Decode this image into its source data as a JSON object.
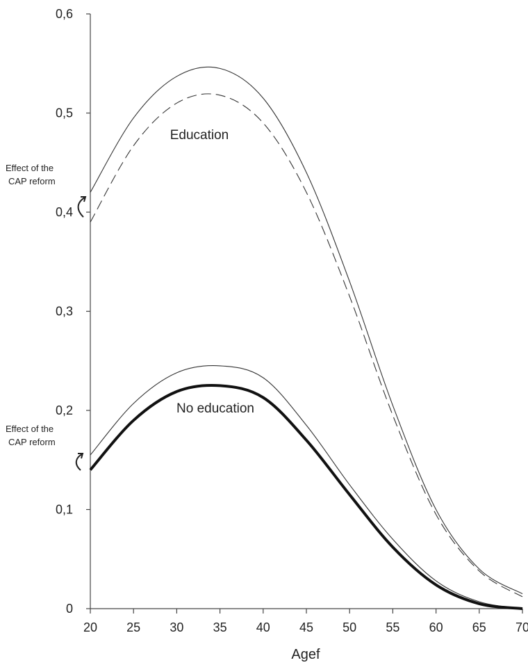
{
  "chart_data": {
    "type": "line",
    "xlabel": "Agef",
    "ylabel": "",
    "xlim": [
      20,
      70
    ],
    "ylim": [
      0,
      0.6
    ],
    "x_ticks": [
      20,
      25,
      30,
      35,
      40,
      45,
      50,
      55,
      60,
      65,
      70
    ],
    "x_tick_labels": [
      "20",
      "25",
      "30",
      "35",
      "40",
      "45",
      "50",
      "55",
      "60",
      "65",
      "70"
    ],
    "y_ticks": [
      0,
      0.1,
      0.2,
      0.3,
      0.4,
      0.5,
      0.6
    ],
    "y_tick_labels": [
      "0",
      "0,1",
      "0,2",
      "0,3",
      "0,4",
      "0,5",
      "0,6"
    ],
    "grid": false,
    "x": [
      20,
      25,
      30,
      35,
      40,
      45,
      50,
      55,
      60,
      65,
      70
    ],
    "series": [
      {
        "style": "thin-solid",
        "color": "#333333",
        "values": [
          0.42,
          0.495,
          0.537,
          0.545,
          0.515,
          0.44,
          0.33,
          0.205,
          0.1,
          0.04,
          0.015
        ]
      },
      {
        "style": "dashed",
        "color": "#333333",
        "values": [
          0.39,
          0.467,
          0.51,
          0.518,
          0.49,
          0.42,
          0.315,
          0.195,
          0.095,
          0.038,
          0.012
        ]
      },
      {
        "style": "thin-solid",
        "color": "#333333",
        "values": [
          0.155,
          0.207,
          0.238,
          0.245,
          0.233,
          0.185,
          0.125,
          0.07,
          0.028,
          0.007,
          0.0
        ]
      },
      {
        "style": "thick-solid",
        "color": "#111111",
        "values": [
          0.14,
          0.19,
          0.219,
          0.225,
          0.213,
          0.17,
          0.115,
          0.062,
          0.024,
          0.005,
          0.0
        ]
      }
    ],
    "annotations": [
      {
        "text": "Education",
        "x": 37.3,
        "y": 0.49
      },
      {
        "text": "No education",
        "x": 41.5,
        "y": 0.195
      }
    ],
    "side_notes": [
      {
        "lines": [
          "Effect of the",
          "CAP reform"
        ],
        "near_y": 0.43
      },
      {
        "lines": [
          "Effect of the",
          "CAP reform"
        ],
        "near_y": 0.175
      }
    ]
  }
}
